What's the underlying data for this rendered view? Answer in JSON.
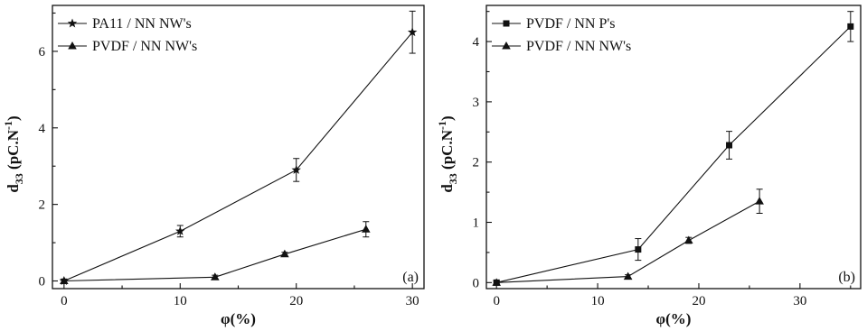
{
  "chart_data": [
    {
      "panel_label": "(a)",
      "type": "line",
      "xlabel": "φ(%)",
      "ylabel": "d33 (pC.N-1)",
      "ylabel_base": "d",
      "ylabel_sub": "33",
      "ylabel_unit": " (pC.N",
      "ylabel_sup": "-1",
      "ylabel_close": ")",
      "xlim": [
        -1,
        31
      ],
      "ylim": [
        -0.2,
        7.2
      ],
      "xticks": [
        0,
        10,
        20,
        30
      ],
      "yticks": [
        0,
        2,
        4,
        6
      ],
      "legend_position": "top-left",
      "series": [
        {
          "name": "PA11 / NN NW's",
          "marker": "star",
          "color": "#111111",
          "x": [
            0,
            10,
            20,
            30
          ],
          "y": [
            0.0,
            1.3,
            2.9,
            6.5
          ],
          "err": [
            0.05,
            0.15,
            0.3,
            0.55
          ]
        },
        {
          "name": "PVDF / NN NW's",
          "marker": "triangle",
          "color": "#111111",
          "x": [
            0,
            13,
            19,
            26
          ],
          "y": [
            0.0,
            0.1,
            0.7,
            1.35
          ],
          "err": [
            0.05,
            0.05,
            0.05,
            0.2
          ]
        }
      ]
    },
    {
      "panel_label": "(b)",
      "type": "line",
      "xlabel": "φ(%)",
      "ylabel": "d33 (pC.N-1)",
      "ylabel_base": "d",
      "ylabel_sub": "33",
      "ylabel_unit": " (pC.N",
      "ylabel_sup": "-1",
      "ylabel_close": ")",
      "xlim": [
        -1,
        36
      ],
      "ylim": [
        -0.1,
        4.6
      ],
      "xticks": [
        0,
        10,
        20,
        30
      ],
      "yticks": [
        0,
        1,
        2,
        3,
        4
      ],
      "legend_position": "top-left",
      "series": [
        {
          "name": "PVDF / NN P's",
          "marker": "square",
          "color": "#111111",
          "x": [
            0,
            14,
            23,
            35
          ],
          "y": [
            0.0,
            0.55,
            2.28,
            4.25
          ],
          "err": [
            0.03,
            0.18,
            0.23,
            0.25
          ]
        },
        {
          "name": "PVDF / NN NW's",
          "marker": "triangle",
          "color": "#111111",
          "x": [
            0,
            13,
            19,
            26
          ],
          "y": [
            0.0,
            0.1,
            0.7,
            1.35
          ],
          "err": [
            0.03,
            0.03,
            0.05,
            0.2
          ]
        }
      ]
    }
  ]
}
